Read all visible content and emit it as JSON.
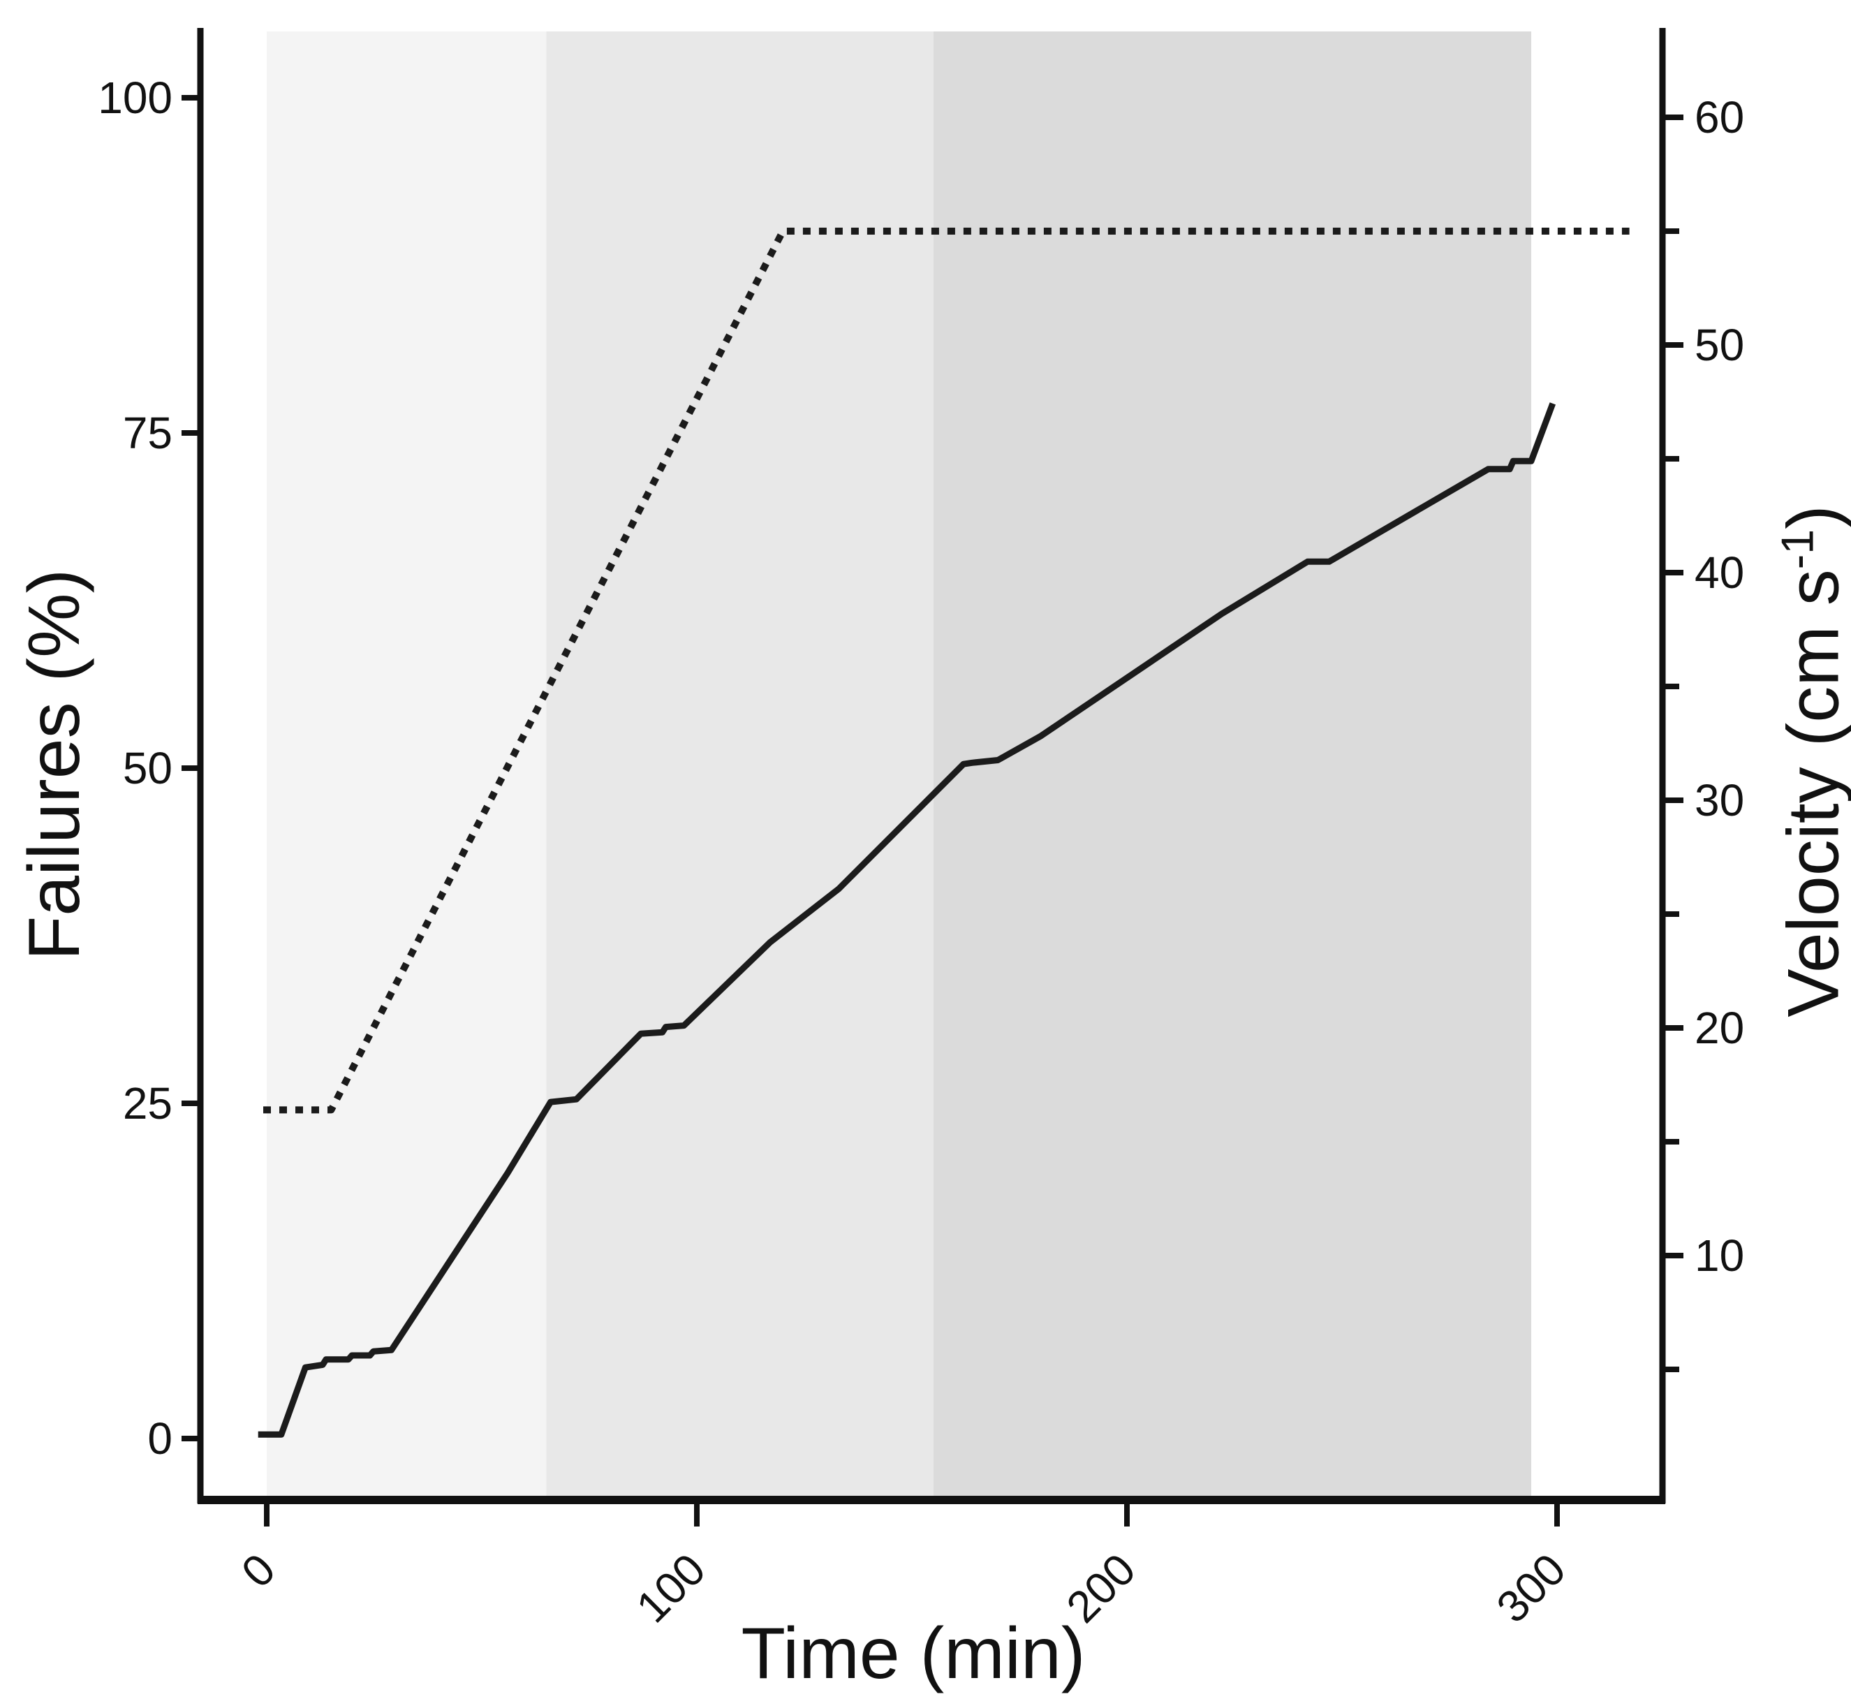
{
  "chart_data": {
    "type": "line",
    "title": "",
    "xlabel": "Time (min)",
    "ylabel_left": "Failures (%)",
    "ylabel_right": "Velocity (cm s-1)",
    "ylabel_right_parts": [
      "Velocity (cm s",
      "-1",
      ")"
    ],
    "x_axis": {
      "label": "Time (min)",
      "ticks": [
        0,
        100,
        200,
        300
      ],
      "range": [
        -15,
        325
      ]
    },
    "left_axis": {
      "label": "Failures (%)",
      "ticks": [
        0,
        25,
        50,
        75,
        100
      ],
      "range": [
        0,
        105
      ]
    },
    "right_axis": {
      "label": "Velocity (cm s-1)",
      "major_ticks": [
        10,
        20,
        30,
        40,
        50,
        60
      ],
      "minor_ticks": [
        5,
        15,
        25,
        35,
        45,
        55
      ],
      "range": [
        0,
        62
      ]
    },
    "grid": "off",
    "legend": "none",
    "shaded_bands": [
      {
        "x_start": 0,
        "x_end": 65,
        "color": "#f4f4f4"
      },
      {
        "x_start": 65,
        "x_end": 155,
        "color": "#e8e8e8"
      },
      {
        "x_start": 155,
        "x_end": 294,
        "color": "#dbdbdb"
      }
    ],
    "series": [
      {
        "name": "Failures",
        "axis": "left",
        "style": "solid",
        "color": "#1b1b1b",
        "points": [
          [
            -2,
            0.3
          ],
          [
            3.4,
            0.3
          ],
          [
            9,
            5.3
          ],
          [
            13,
            5.5
          ],
          [
            13.8,
            5.9
          ],
          [
            19,
            5.9
          ],
          [
            19.8,
            6.2
          ],
          [
            24,
            6.2
          ],
          [
            24.8,
            6.5
          ],
          [
            29,
            6.6
          ],
          [
            56,
            19.8
          ],
          [
            66,
            25.1
          ],
          [
            72,
            25.3
          ],
          [
            87,
            30.2
          ],
          [
            92,
            30.3
          ],
          [
            92.8,
            30.7
          ],
          [
            97,
            30.8
          ],
          [
            117,
            37
          ],
          [
            133,
            41
          ],
          [
            162,
            50.3
          ],
          [
            164,
            50.4
          ],
          [
            170,
            50.6
          ],
          [
            180,
            52.4
          ],
          [
            222,
            61.5
          ],
          [
            242,
            65.4
          ],
          [
            247,
            65.4
          ],
          [
            284,
            72.3
          ],
          [
            289,
            72.3
          ],
          [
            289.8,
            72.9
          ],
          [
            294,
            72.9
          ],
          [
            299,
            77.2
          ]
        ]
      },
      {
        "name": "Velocity",
        "axis": "right",
        "style": "dotted",
        "color": "#1b1b1b",
        "points": [
          [
            0,
            16.4
          ],
          [
            15,
            16.4
          ],
          [
            120,
            55
          ],
          [
            316,
            55
          ]
        ]
      }
    ]
  }
}
